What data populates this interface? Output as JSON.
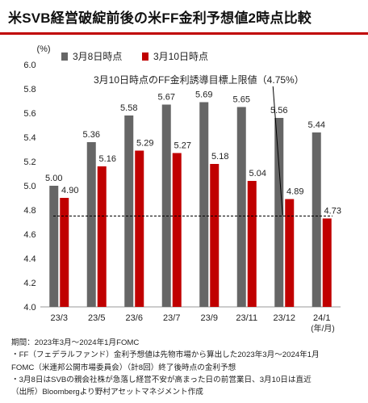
{
  "title": "米SVB経営破綻前後の米FF金利予想値2時点比較",
  "chart_data": {
    "type": "bar",
    "unit_label": "(%)",
    "x_unit_label": "(年/月)",
    "categories": [
      "23/3",
      "23/5",
      "23/6",
      "23/7",
      "23/9",
      "23/11",
      "23/12",
      "24/1"
    ],
    "series": [
      {
        "name": "3月8日時点",
        "color": "#666666",
        "values": [
          5.0,
          5.36,
          5.58,
          5.67,
          5.69,
          5.65,
          5.56,
          5.44
        ],
        "labels": [
          "5.00",
          "5.36",
          "5.58",
          "5.67",
          "5.69",
          "5.65",
          "5.56",
          "5.44"
        ]
      },
      {
        "name": "3月10日時点",
        "color": "#c00000",
        "values": [
          4.9,
          5.16,
          5.29,
          5.27,
          5.18,
          5.04,
          4.89,
          4.73
        ],
        "labels": [
          "4.90",
          "5.16",
          "5.29",
          "5.27",
          "5.18",
          "5.04",
          "4.89",
          "4.73"
        ]
      }
    ],
    "ylim": [
      4.0,
      6.0
    ],
    "yticks": [
      4.0,
      4.2,
      4.4,
      4.6,
      4.8,
      5.0,
      5.2,
      5.4,
      5.6,
      5.8,
      6.0
    ],
    "ytick_labels": [
      "4.0",
      "4.2",
      "4.4",
      "4.6",
      "4.8",
      "5.0",
      "5.2",
      "5.4",
      "5.6",
      "5.8",
      "6.0"
    ],
    "reference_line": {
      "value": 4.75,
      "style": "dashed",
      "color": "#000000"
    },
    "annotation": {
      "text": "3月10日時点のFF金利誘導目標上限値（4.75%）",
      "points_to_category": "23/12"
    },
    "grid": false,
    "legend_placement": "top-left"
  },
  "notes": [
    "期間：2023年3月～2024年1月FOMC",
    "・FF（フェデラルファンド）金利予想値は先物市場から算出した2023年3月～2024年1月",
    "FOMC（米連邦公開市場委員会）（計8回）終了後時点の金利予想",
    "・3月8日はSVBの親会社株が急落し経営不安が高まった日の前営業日、3月10日は直近",
    "（出所）Bloombergより野村アセットマネジメント作成"
  ]
}
